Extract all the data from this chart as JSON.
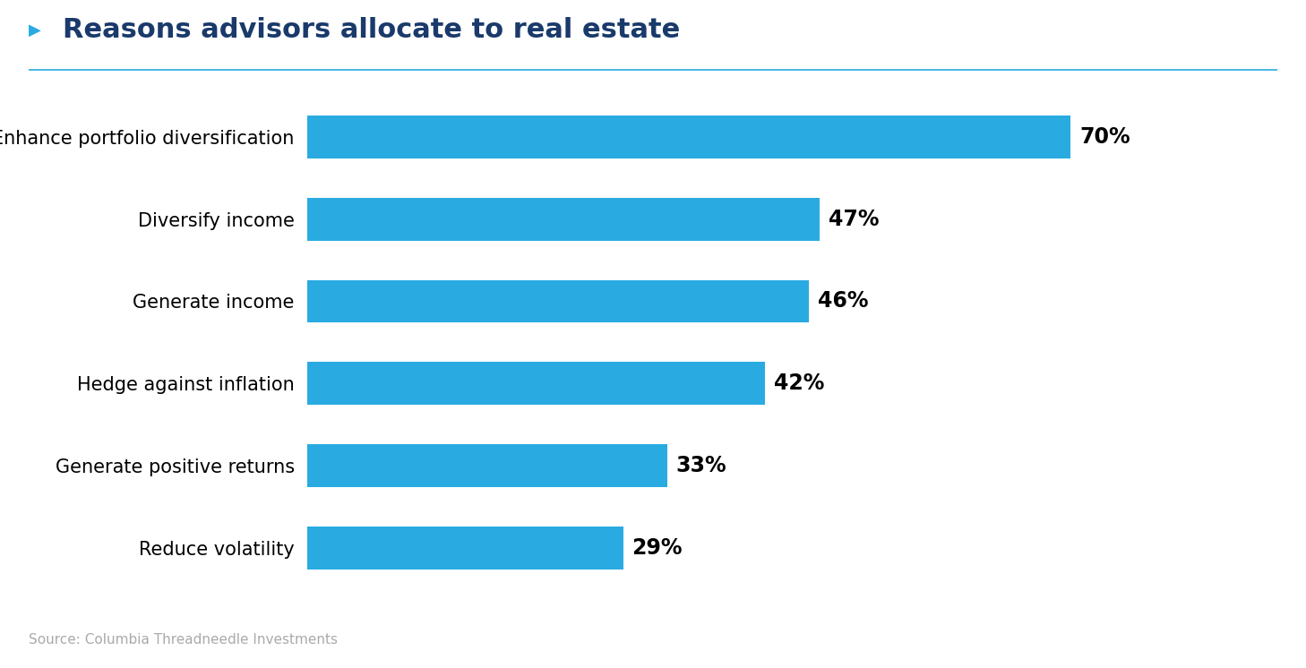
{
  "title": "Reasons advisors allocate to real estate",
  "title_color": "#1a3a6b",
  "title_fontsize": 22,
  "bar_color": "#29abe2",
  "label_color": "#000000",
  "categories": [
    "Enhance portfolio diversification",
    "Diversify income",
    "Generate income",
    "Hedge against inflation",
    "Generate positive returns",
    "Reduce volatility"
  ],
  "values": [
    70,
    47,
    46,
    42,
    33,
    29
  ],
  "source_text": "Source: Columbia Threadneedle Investments",
  "source_color": "#aaaaaa",
  "source_fontsize": 11,
  "background_color": "#ffffff",
  "xlim": [
    0,
    82
  ],
  "bar_height": 0.52,
  "value_fontsize": 17,
  "category_fontsize": 15,
  "triangle_color": "#29abe2",
  "title_marker_color": "#29abe2"
}
